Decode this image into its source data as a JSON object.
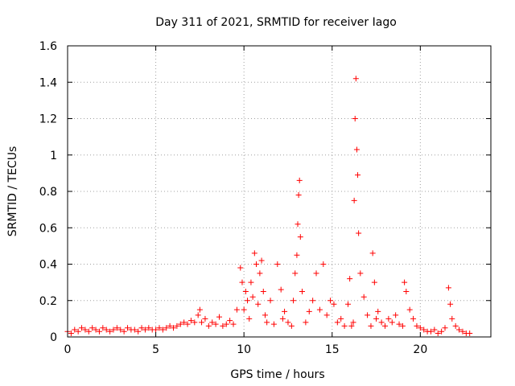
{
  "chart_data": {
    "type": "scatter",
    "title": "Day 311 of 2021, SRMTID for receiver Iago",
    "xlabel": "GPS time / hours",
    "ylabel": "SRMTID / TECUs",
    "xlim": [
      0,
      24
    ],
    "ylim": [
      0,
      1.6
    ],
    "grid": true,
    "legend": "none",
    "marker": "+",
    "x_ticks": [
      0,
      5,
      10,
      15,
      20
    ],
    "x_tick_labels": [
      "0",
      "5",
      "10",
      "15",
      "20"
    ],
    "y_ticks": [
      0,
      0.2,
      0.4,
      0.6,
      0.8,
      1.0,
      1.2,
      1.4,
      1.6
    ],
    "y_tick_labels": [
      "0",
      "0.2",
      "0.4",
      "0.6",
      "0.8",
      "1",
      "1.2",
      "1.4",
      "1.6"
    ],
    "colors": {
      "series": "#ff0000",
      "grid": "#a0a0a0",
      "axis": "#000000"
    },
    "series": [
      {
        "name": "SRMTID",
        "x": [
          0.0,
          0.2,
          0.4,
          0.6,
          0.8,
          1.0,
          1.2,
          1.4,
          1.6,
          1.8,
          2.0,
          2.2,
          2.4,
          2.6,
          2.8,
          3.0,
          3.2,
          3.4,
          3.6,
          3.8,
          4.0,
          4.2,
          4.4,
          4.6,
          4.8,
          5.0,
          5.2,
          5.4,
          5.6,
          5.8,
          6.0,
          6.2,
          6.4,
          6.6,
          6.8,
          7.0,
          7.2,
          7.4,
          7.5,
          7.6,
          7.8,
          8.0,
          8.2,
          8.4,
          8.6,
          8.8,
          9.0,
          9.2,
          9.4,
          9.6,
          9.8,
          9.9,
          10.0,
          10.1,
          10.2,
          10.3,
          10.4,
          10.5,
          10.6,
          10.7,
          10.8,
          10.9,
          11.0,
          11.1,
          11.2,
          11.3,
          11.5,
          11.7,
          11.9,
          12.1,
          12.2,
          12.3,
          12.5,
          12.7,
          12.8,
          12.9,
          13.0,
          13.05,
          13.1,
          13.15,
          13.2,
          13.3,
          13.5,
          13.7,
          13.9,
          14.1,
          14.3,
          14.5,
          14.7,
          14.9,
          15.1,
          15.3,
          15.5,
          15.7,
          15.9,
          16.0,
          16.1,
          16.2,
          16.25,
          16.3,
          16.35,
          16.4,
          16.45,
          16.5,
          16.6,
          16.8,
          17.0,
          17.2,
          17.3,
          17.4,
          17.5,
          17.6,
          17.8,
          18.0,
          18.2,
          18.4,
          18.6,
          18.8,
          19.0,
          19.1,
          19.2,
          19.4,
          19.6,
          19.8,
          20.0,
          20.2,
          20.4,
          20.6,
          20.8,
          21.0,
          21.2,
          21.4,
          21.6,
          21.7,
          21.8,
          22.0,
          22.2,
          22.4,
          22.6,
          22.8
        ],
        "values": [
          0.03,
          0.02,
          0.04,
          0.03,
          0.05,
          0.04,
          0.03,
          0.05,
          0.04,
          0.03,
          0.05,
          0.04,
          0.03,
          0.04,
          0.05,
          0.04,
          0.03,
          0.05,
          0.04,
          0.04,
          0.03,
          0.05,
          0.04,
          0.05,
          0.04,
          0.04,
          0.05,
          0.04,
          0.05,
          0.06,
          0.05,
          0.06,
          0.07,
          0.08,
          0.07,
          0.09,
          0.08,
          0.12,
          0.15,
          0.08,
          0.1,
          0.06,
          0.08,
          0.07,
          0.11,
          0.06,
          0.07,
          0.09,
          0.07,
          0.15,
          0.38,
          0.3,
          0.15,
          0.25,
          0.2,
          0.1,
          0.3,
          0.22,
          0.46,
          0.4,
          0.18,
          0.35,
          0.42,
          0.25,
          0.12,
          0.08,
          0.2,
          0.07,
          0.4,
          0.26,
          0.1,
          0.14,
          0.08,
          0.06,
          0.2,
          0.35,
          0.45,
          0.62,
          0.78,
          0.86,
          0.55,
          0.25,
          0.08,
          0.14,
          0.2,
          0.35,
          0.15,
          0.4,
          0.12,
          0.2,
          0.18,
          0.08,
          0.1,
          0.06,
          0.18,
          0.32,
          0.06,
          0.08,
          0.75,
          1.2,
          1.42,
          1.03,
          0.89,
          0.57,
          0.35,
          0.22,
          0.12,
          0.06,
          0.46,
          0.3,
          0.1,
          0.14,
          0.08,
          0.06,
          0.1,
          0.08,
          0.12,
          0.07,
          0.06,
          0.3,
          0.25,
          0.15,
          0.1,
          0.06,
          0.05,
          0.04,
          0.03,
          0.03,
          0.04,
          0.02,
          0.03,
          0.05,
          0.27,
          0.18,
          0.1,
          0.06,
          0.04,
          0.03,
          0.02,
          0.02
        ]
      }
    ]
  }
}
